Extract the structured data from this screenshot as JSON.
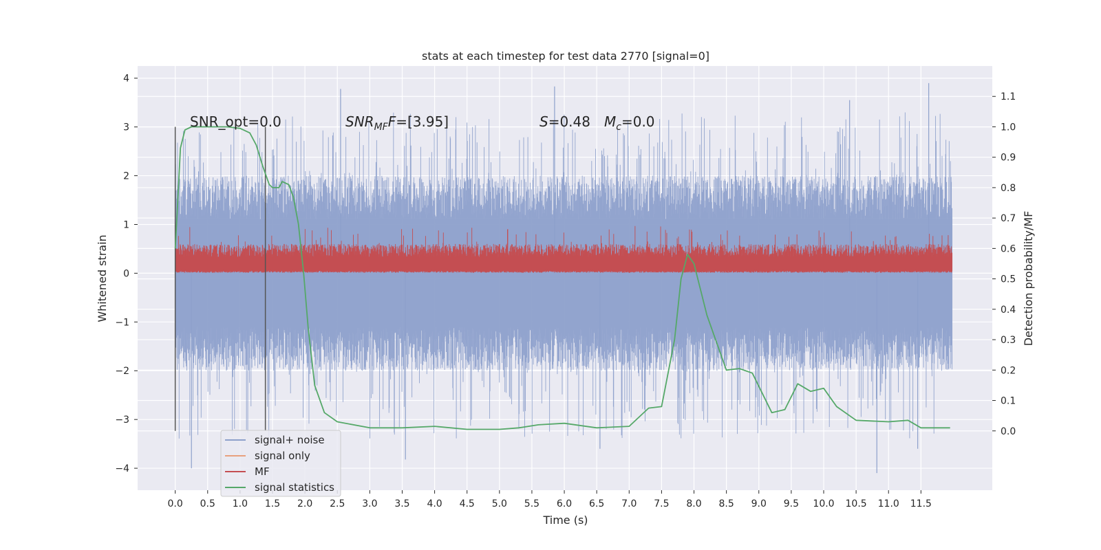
{
  "chart_data": {
    "type": "line",
    "title": "stats at each timestep for test data 2770 [signal=0]",
    "xlabel": "Time (s)",
    "ylabel": "Whitened strain",
    "y2label": "Detection probability/MF",
    "xlim": [
      -0.58,
      12.6
    ],
    "ylim": [
      -4.45,
      4.25
    ],
    "y2lim": [
      -0.195,
      1.2
    ],
    "x_ticks": [
      "0.0",
      "0.5",
      "1.0",
      "1.5",
      "2.0",
      "2.5",
      "3.0",
      "3.5",
      "4.0",
      "4.5",
      "5.0",
      "5.5",
      "6.0",
      "6.5",
      "7.0",
      "7.5",
      "8.0",
      "8.5",
      "9.0",
      "9.5",
      "10.0",
      "10.5",
      "11.0",
      "11.5"
    ],
    "y_ticks": [
      "4",
      "3",
      "2",
      "1",
      "0",
      "−1",
      "−2",
      "−3",
      "−4"
    ],
    "y2_ticks": [
      "1.1",
      "1.0",
      "0.9",
      "0.8",
      "0.7",
      "0.6",
      "0.5",
      "0.4",
      "0.3",
      "0.2",
      "0.1",
      "0.0"
    ],
    "grid": true,
    "legend_position": "bottom-left",
    "annotations": {
      "snr_opt": "SNR_opt=0.0",
      "snr_mf_main": "SNR",
      "snr_mf_sub": "MF",
      "snr_mf_rest": "=[3.95]",
      "s_var": "S",
      "s_rest": "=0.48",
      "mc_var": "M",
      "mc_sub": "c",
      "mc_rest": "=0.0"
    },
    "vertical_markers": [
      0.0,
      1.39
    ],
    "series": [
      {
        "name": "signal+ noise",
        "color": "#8da0cb",
        "envelope_abs": 2.0,
        "spike_max": 3.9,
        "spike_min": -4.0,
        "spikes": [
          {
            "x": 0.25,
            "y": -4.0
          },
          {
            "x": 2.55,
            "y": 3.78
          },
          {
            "x": 3.55,
            "y": -3.82
          },
          {
            "x": 5.85,
            "y": 3.83
          },
          {
            "x": 6.55,
            "y": -3.6
          },
          {
            "x": 10.4,
            "y": 3.55
          },
          {
            "x": 10.82,
            "y": -4.1
          },
          {
            "x": 11.62,
            "y": 3.9
          },
          {
            "x": 11.45,
            "y": -3.6
          }
        ]
      },
      {
        "name": "signal only",
        "color": "#e8a07d"
      },
      {
        "name": "MF",
        "color": "#c44e52",
        "low": 0.05,
        "high": 0.6,
        "spike_max": 0.97
      },
      {
        "name": "signal statistics",
        "color": "#55a868",
        "axis": "right",
        "x": [
          0.0,
          0.03,
          0.08,
          0.15,
          0.25,
          0.5,
          0.8,
          1.0,
          1.15,
          1.25,
          1.35,
          1.45,
          1.5,
          1.6,
          1.65,
          1.75,
          1.82,
          1.9,
          1.98,
          2.05,
          2.15,
          2.3,
          2.5,
          3.0,
          3.5,
          4.0,
          4.5,
          5.0,
          5.3,
          5.6,
          6.0,
          6.5,
          7.0,
          7.3,
          7.5,
          7.7,
          7.8,
          7.9,
          8.0,
          8.2,
          8.5,
          8.7,
          8.9,
          9.2,
          9.4,
          9.6,
          9.8,
          10.0,
          10.2,
          10.5,
          11.0,
          11.3,
          11.5,
          11.95
        ],
        "y": [
          0.6,
          0.72,
          0.93,
          0.99,
          1.0,
          1.0,
          1.0,
          0.995,
          0.98,
          0.94,
          0.87,
          0.81,
          0.8,
          0.8,
          0.82,
          0.81,
          0.77,
          0.68,
          0.52,
          0.34,
          0.15,
          0.06,
          0.03,
          0.01,
          0.01,
          0.015,
          0.005,
          0.005,
          0.01,
          0.02,
          0.025,
          0.01,
          0.015,
          0.075,
          0.08,
          0.3,
          0.5,
          0.58,
          0.55,
          0.38,
          0.2,
          0.205,
          0.19,
          0.06,
          0.07,
          0.155,
          0.13,
          0.14,
          0.08,
          0.035,
          0.03,
          0.035,
          0.01,
          0.01
        ]
      }
    ]
  }
}
